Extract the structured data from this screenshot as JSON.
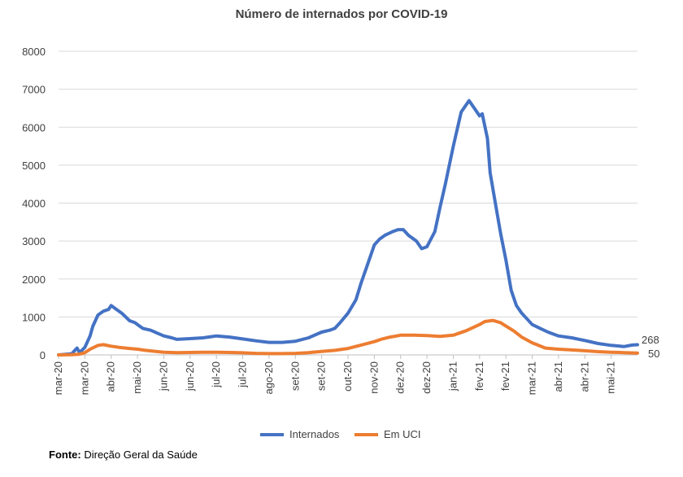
{
  "chart_data": {
    "type": "line",
    "title": "Número de internados por COVID-19",
    "xlabel": "",
    "ylabel": "",
    "ylim": [
      0,
      8000
    ],
    "yticks": [
      0,
      1000,
      2000,
      3000,
      4000,
      5000,
      6000,
      7000,
      8000
    ],
    "grid": true,
    "xtick_labels": [
      "mar-20",
      "mar-20",
      "abr-20",
      "mai-20",
      "jun-20",
      "jun-20",
      "jul-20",
      "jul-20",
      "ago-20",
      "set-20",
      "set-20",
      "out-20",
      "nov-20",
      "dez-20",
      "dez-20",
      "jan-21",
      "fev-21",
      "fev-21",
      "mar-21",
      "abr-21",
      "abr-21",
      "mai-21"
    ],
    "x_range": [
      0,
      22
    ],
    "series": [
      {
        "name": "Internados",
        "color": "#4472c4",
        "x": [
          0,
          0.5,
          0.7,
          0.8,
          1.0,
          1.2,
          1.3,
          1.5,
          1.7,
          1.9,
          2.0,
          2.2,
          2.4,
          2.7,
          2.9,
          3.0,
          3.2,
          3.5,
          3.8,
          4.0,
          4.3,
          4.5,
          5.0,
          5.5,
          6.0,
          6.5,
          7.0,
          7.5,
          8.0,
          8.5,
          9.0,
          9.5,
          10.0,
          10.3,
          10.5,
          10.7,
          11.0,
          11.3,
          11.5,
          11.7,
          12.0,
          12.2,
          12.4,
          12.7,
          12.9,
          13.1,
          13.3,
          13.6,
          13.8,
          14.0,
          14.3,
          14.5,
          14.7,
          15.0,
          15.3,
          15.6,
          15.8,
          16.0,
          16.1,
          16.3,
          16.4,
          16.6,
          16.8,
          17.0,
          17.2,
          17.4,
          17.6,
          17.8,
          18.0,
          18.3,
          18.6,
          19.0,
          19.5,
          20.0,
          20.5,
          21.0,
          21.5,
          21.8,
          22.0
        ],
        "values": [
          0,
          30,
          180,
          60,
          200,
          500,
          750,
          1050,
          1150,
          1200,
          1300,
          1200,
          1100,
          900,
          850,
          800,
          700,
          650,
          560,
          500,
          450,
          410,
          430,
          450,
          500,
          470,
          420,
          370,
          330,
          330,
          360,
          450,
          600,
          650,
          700,
          850,
          1100,
          1450,
          1900,
          2300,
          2900,
          3050,
          3150,
          3250,
          3300,
          3300,
          3150,
          3000,
          2800,
          2850,
          3250,
          3900,
          4500,
          5500,
          6400,
          6700,
          6500,
          6300,
          6350,
          5700,
          4800,
          4000,
          3200,
          2500,
          1700,
          1300,
          1100,
          950,
          800,
          700,
          600,
          500,
          450,
          380,
          300,
          250,
          220,
          260,
          268
        ]
      },
      {
        "name": "Em UCI",
        "color": "#ed7d31",
        "x": [
          0,
          0.5,
          0.8,
          1.0,
          1.2,
          1.5,
          1.7,
          2.0,
          2.3,
          2.7,
          3.0,
          3.3,
          3.7,
          4.0,
          4.5,
          5.0,
          5.5,
          6.0,
          6.5,
          7.0,
          7.5,
          8.0,
          8.5,
          9.0,
          9.5,
          10.0,
          10.5,
          11.0,
          11.5,
          12.0,
          12.3,
          12.6,
          13.0,
          13.5,
          14.0,
          14.5,
          15.0,
          15.5,
          16.0,
          16.2,
          16.5,
          16.8,
          17.0,
          17.3,
          17.6,
          18.0,
          18.5,
          19.0,
          19.5,
          20.0,
          20.5,
          21.0,
          21.5,
          22.0
        ],
        "values": [
          0,
          5,
          20,
          60,
          150,
          250,
          270,
          230,
          200,
          170,
          150,
          120,
          90,
          70,
          60,
          65,
          70,
          70,
          65,
          55,
          40,
          35,
          35,
          40,
          60,
          90,
          120,
          170,
          260,
          350,
          420,
          470,
          520,
          520,
          510,
          490,
          520,
          640,
          800,
          880,
          910,
          850,
          760,
          630,
          470,
          320,
          180,
          150,
          130,
          110,
          85,
          70,
          60,
          50
        ]
      }
    ],
    "end_labels": {
      "internados": "268",
      "uci": "50"
    },
    "legend": {
      "position": "bottom",
      "items": [
        "Internados",
        "Em UCI"
      ]
    }
  },
  "source": {
    "label": "Fonte:",
    "text": "Direção Geral da Saúde"
  }
}
